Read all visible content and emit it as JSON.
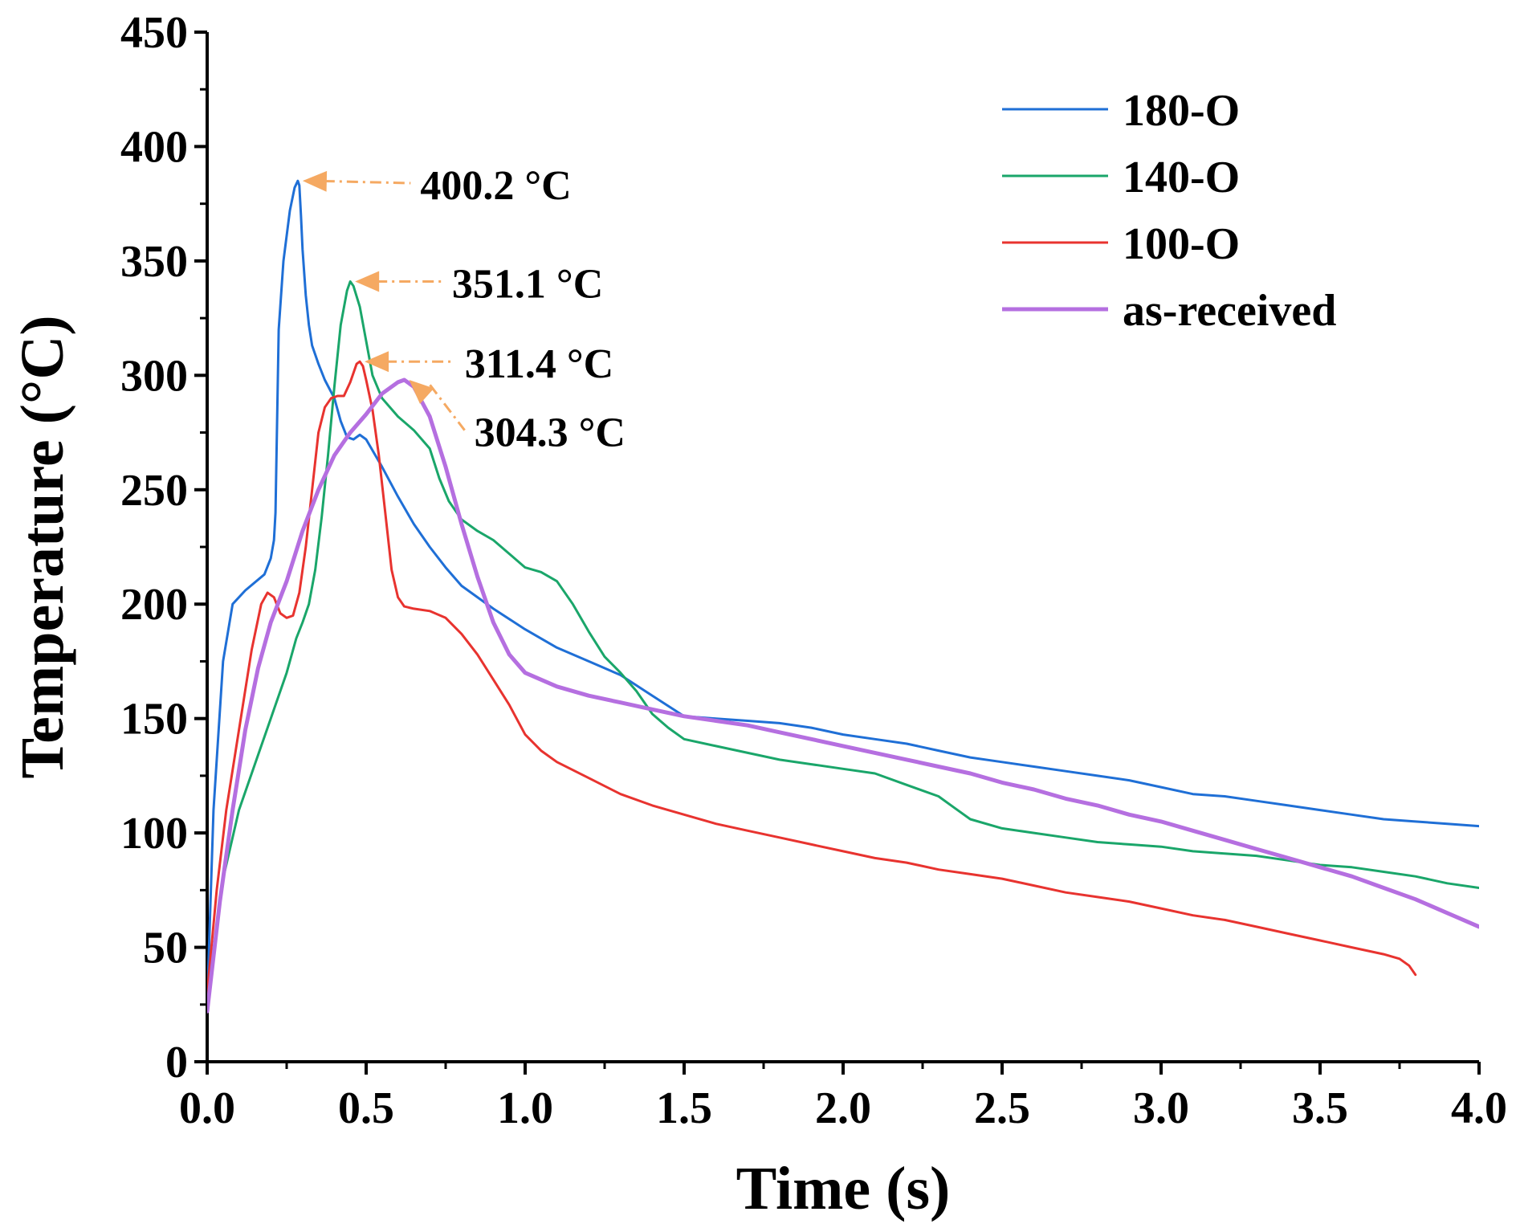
{
  "chart_data": {
    "type": "line",
    "xlabel": "Time (s)",
    "ylabel": "Temperature (°C)",
    "xlim": [
      0,
      4
    ],
    "ylim": [
      0,
      450
    ],
    "xticks": [
      "0.0",
      "0.5",
      "1.0",
      "1.5",
      "2.0",
      "2.5",
      "3.0",
      "3.5",
      "4.0"
    ],
    "yticks": [
      "0",
      "50",
      "100",
      "150",
      "200",
      "250",
      "300",
      "350",
      "400",
      "450"
    ],
    "legend_position": "top-right",
    "series": [
      {
        "name": "180-O",
        "color": "#1f6fd6",
        "points": [
          [
            0.0,
            25
          ],
          [
            0.02,
            110
          ],
          [
            0.05,
            175
          ],
          [
            0.08,
            200
          ],
          [
            0.12,
            206
          ],
          [
            0.18,
            213
          ],
          [
            0.2,
            220
          ],
          [
            0.21,
            228
          ],
          [
            0.215,
            240
          ],
          [
            0.22,
            280
          ],
          [
            0.225,
            320
          ],
          [
            0.24,
            350
          ],
          [
            0.26,
            372
          ],
          [
            0.275,
            382
          ],
          [
            0.285,
            385
          ],
          [
            0.29,
            383
          ],
          [
            0.295,
            370
          ],
          [
            0.3,
            355
          ],
          [
            0.31,
            335
          ],
          [
            0.32,
            322
          ],
          [
            0.33,
            313
          ],
          [
            0.35,
            305
          ],
          [
            0.37,
            298
          ],
          [
            0.4,
            290
          ],
          [
            0.42,
            280
          ],
          [
            0.44,
            273
          ],
          [
            0.46,
            272
          ],
          [
            0.48,
            274
          ],
          [
            0.5,
            272
          ],
          [
            0.55,
            260
          ],
          [
            0.6,
            247
          ],
          [
            0.65,
            235
          ],
          [
            0.7,
            225
          ],
          [
            0.75,
            216
          ],
          [
            0.8,
            208
          ],
          [
            0.9,
            198
          ],
          [
            1.0,
            189
          ],
          [
            1.1,
            181
          ],
          [
            1.2,
            175
          ],
          [
            1.3,
            169
          ],
          [
            1.4,
            160
          ],
          [
            1.5,
            151
          ],
          [
            1.6,
            150
          ],
          [
            1.7,
            149
          ],
          [
            1.8,
            148
          ],
          [
            1.9,
            146
          ],
          [
            2.0,
            143
          ],
          [
            2.1,
            141
          ],
          [
            2.2,
            139
          ],
          [
            2.3,
            136
          ],
          [
            2.4,
            133
          ],
          [
            2.5,
            131
          ],
          [
            2.6,
            129
          ],
          [
            2.7,
            127
          ],
          [
            2.8,
            125
          ],
          [
            2.9,
            123
          ],
          [
            3.0,
            120
          ],
          [
            3.1,
            117
          ],
          [
            3.2,
            116
          ],
          [
            3.3,
            114
          ],
          [
            3.4,
            112
          ],
          [
            3.5,
            110
          ],
          [
            3.6,
            108
          ],
          [
            3.7,
            106
          ],
          [
            3.8,
            105
          ],
          [
            3.9,
            104
          ],
          [
            4.0,
            103
          ]
        ]
      },
      {
        "name": "140-O",
        "color": "#1aa66a",
        "points": [
          [
            0.0,
            28
          ],
          [
            0.05,
            80
          ],
          [
            0.1,
            110
          ],
          [
            0.15,
            130
          ],
          [
            0.2,
            150
          ],
          [
            0.25,
            170
          ],
          [
            0.28,
            185
          ],
          [
            0.3,
            192
          ],
          [
            0.32,
            200
          ],
          [
            0.34,
            215
          ],
          [
            0.36,
            238
          ],
          [
            0.38,
            265
          ],
          [
            0.4,
            295
          ],
          [
            0.42,
            322
          ],
          [
            0.44,
            337
          ],
          [
            0.45,
            341
          ],
          [
            0.46,
            339
          ],
          [
            0.48,
            330
          ],
          [
            0.5,
            315
          ],
          [
            0.52,
            300
          ],
          [
            0.55,
            290
          ],
          [
            0.6,
            282
          ],
          [
            0.65,
            276
          ],
          [
            0.7,
            268
          ],
          [
            0.73,
            255
          ],
          [
            0.76,
            245
          ],
          [
            0.8,
            237
          ],
          [
            0.85,
            232
          ],
          [
            0.9,
            228
          ],
          [
            0.95,
            222
          ],
          [
            1.0,
            216
          ],
          [
            1.05,
            214
          ],
          [
            1.1,
            210
          ],
          [
            1.15,
            200
          ],
          [
            1.2,
            188
          ],
          [
            1.25,
            177
          ],
          [
            1.3,
            170
          ],
          [
            1.35,
            162
          ],
          [
            1.4,
            152
          ],
          [
            1.45,
            146
          ],
          [
            1.5,
            141
          ],
          [
            1.6,
            138
          ],
          [
            1.7,
            135
          ],
          [
            1.8,
            132
          ],
          [
            1.9,
            130
          ],
          [
            2.0,
            128
          ],
          [
            2.1,
            126
          ],
          [
            2.2,
            121
          ],
          [
            2.3,
            116
          ],
          [
            2.35,
            111
          ],
          [
            2.4,
            106
          ],
          [
            2.5,
            102
          ],
          [
            2.6,
            100
          ],
          [
            2.7,
            98
          ],
          [
            2.8,
            96
          ],
          [
            2.9,
            95
          ],
          [
            3.0,
            94
          ],
          [
            3.1,
            92
          ],
          [
            3.2,
            91
          ],
          [
            3.3,
            90
          ],
          [
            3.4,
            88
          ],
          [
            3.5,
            86
          ],
          [
            3.6,
            85
          ],
          [
            3.7,
            83
          ],
          [
            3.8,
            81
          ],
          [
            3.9,
            78
          ],
          [
            4.0,
            76
          ]
        ]
      },
      {
        "name": "100-O",
        "color": "#e8332f",
        "points": [
          [
            0.0,
            30
          ],
          [
            0.03,
            75
          ],
          [
            0.06,
            110
          ],
          [
            0.1,
            145
          ],
          [
            0.14,
            180
          ],
          [
            0.17,
            200
          ],
          [
            0.19,
            205
          ],
          [
            0.21,
            203
          ],
          [
            0.23,
            196
          ],
          [
            0.25,
            194
          ],
          [
            0.27,
            195
          ],
          [
            0.29,
            205
          ],
          [
            0.31,
            225
          ],
          [
            0.33,
            250
          ],
          [
            0.35,
            275
          ],
          [
            0.37,
            286
          ],
          [
            0.39,
            290
          ],
          [
            0.41,
            291
          ],
          [
            0.43,
            291
          ],
          [
            0.45,
            297
          ],
          [
            0.47,
            305
          ],
          [
            0.48,
            306
          ],
          [
            0.49,
            304
          ],
          [
            0.5,
            298
          ],
          [
            0.52,
            285
          ],
          [
            0.54,
            265
          ],
          [
            0.56,
            240
          ],
          [
            0.58,
            215
          ],
          [
            0.6,
            203
          ],
          [
            0.62,
            199
          ],
          [
            0.65,
            198
          ],
          [
            0.7,
            197
          ],
          [
            0.75,
            194
          ],
          [
            0.8,
            187
          ],
          [
            0.85,
            178
          ],
          [
            0.9,
            167
          ],
          [
            0.95,
            156
          ],
          [
            1.0,
            143
          ],
          [
            1.05,
            136
          ],
          [
            1.1,
            131
          ],
          [
            1.2,
            124
          ],
          [
            1.3,
            117
          ],
          [
            1.4,
            112
          ],
          [
            1.5,
            108
          ],
          [
            1.6,
            104
          ],
          [
            1.7,
            101
          ],
          [
            1.8,
            98
          ],
          [
            1.9,
            95
          ],
          [
            2.0,
            92
          ],
          [
            2.1,
            89
          ],
          [
            2.2,
            87
          ],
          [
            2.3,
            84
          ],
          [
            2.4,
            82
          ],
          [
            2.5,
            80
          ],
          [
            2.6,
            77
          ],
          [
            2.7,
            74
          ],
          [
            2.8,
            72
          ],
          [
            2.9,
            70
          ],
          [
            3.0,
            67
          ],
          [
            3.1,
            64
          ],
          [
            3.2,
            62
          ],
          [
            3.3,
            59
          ],
          [
            3.4,
            56
          ],
          [
            3.5,
            53
          ],
          [
            3.6,
            50
          ],
          [
            3.7,
            47
          ],
          [
            3.75,
            45
          ],
          [
            3.78,
            42
          ],
          [
            3.8,
            38
          ]
        ]
      },
      {
        "name": "as-received",
        "color": "#b56fe0",
        "points": [
          [
            0.0,
            22
          ],
          [
            0.04,
            70
          ],
          [
            0.08,
            110
          ],
          [
            0.12,
            145
          ],
          [
            0.16,
            172
          ],
          [
            0.2,
            192
          ],
          [
            0.25,
            210
          ],
          [
            0.3,
            232
          ],
          [
            0.35,
            250
          ],
          [
            0.4,
            265
          ],
          [
            0.45,
            275
          ],
          [
            0.5,
            283
          ],
          [
            0.55,
            292
          ],
          [
            0.6,
            297
          ],
          [
            0.62,
            298
          ],
          [
            0.65,
            295
          ],
          [
            0.7,
            282
          ],
          [
            0.75,
            260
          ],
          [
            0.8,
            235
          ],
          [
            0.85,
            212
          ],
          [
            0.9,
            192
          ],
          [
            0.95,
            178
          ],
          [
            1.0,
            170
          ],
          [
            1.1,
            164
          ],
          [
            1.2,
            160
          ],
          [
            1.3,
            157
          ],
          [
            1.4,
            154
          ],
          [
            1.5,
            151
          ],
          [
            1.6,
            149
          ],
          [
            1.7,
            147
          ],
          [
            1.8,
            144
          ],
          [
            1.9,
            141
          ],
          [
            2.0,
            138
          ],
          [
            2.1,
            135
          ],
          [
            2.2,
            132
          ],
          [
            2.3,
            129
          ],
          [
            2.4,
            126
          ],
          [
            2.5,
            122
          ],
          [
            2.6,
            119
          ],
          [
            2.7,
            115
          ],
          [
            2.8,
            112
          ],
          [
            2.9,
            108
          ],
          [
            3.0,
            105
          ],
          [
            3.1,
            101
          ],
          [
            3.2,
            97
          ],
          [
            3.3,
            93
          ],
          [
            3.4,
            89
          ],
          [
            3.5,
            85
          ],
          [
            3.6,
            81
          ],
          [
            3.7,
            76
          ],
          [
            3.8,
            71
          ],
          [
            3.9,
            65
          ],
          [
            4.0,
            59
          ]
        ]
      }
    ],
    "annotations": [
      {
        "text": "400.2 °C",
        "point": [
          0.285,
          385
        ],
        "label_at": [
          0.67,
          384
        ],
        "color": "#f5a962"
      },
      {
        "text": "351.1 °C",
        "point": [
          0.45,
          341
        ],
        "label_at": [
          0.77,
          341
        ],
        "color": "#f5a962"
      },
      {
        "text": "311.4 °C",
        "point": [
          0.48,
          306
        ],
        "label_at": [
          0.81,
          306
        ],
        "color": "#f5a962"
      },
      {
        "text": "304.3 °C",
        "point": [
          0.62,
          298
        ],
        "label_at": [
          0.84,
          276
        ],
        "color": "#f5a962"
      }
    ]
  }
}
